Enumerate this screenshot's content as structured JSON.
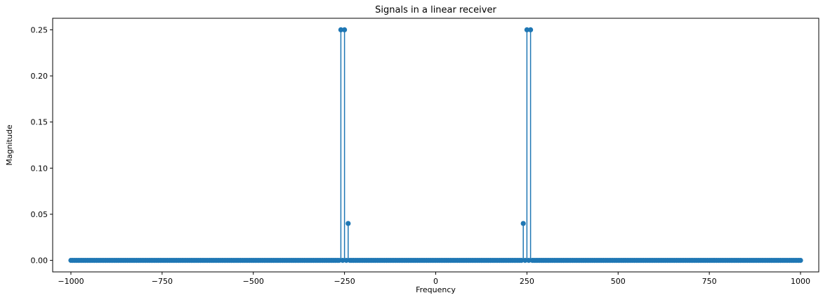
{
  "chart_data": {
    "type": "stem",
    "title": "Signals in a linear receiver",
    "xlabel": "Frequency",
    "ylabel": "Magnitude",
    "xlim": [
      -1050,
      1050
    ],
    "ylim": [
      -0.0125,
      0.2625
    ],
    "xticks": [
      -1000,
      -750,
      -500,
      -250,
      0,
      250,
      500,
      750,
      1000
    ],
    "xtick_labels": [
      "−1000",
      "−750",
      "−500",
      "−250",
      "0",
      "250",
      "500",
      "750",
      "1000"
    ],
    "yticks": [
      0.0,
      0.05,
      0.1,
      0.15,
      0.2,
      0.25
    ],
    "ytick_labels": [
      "0.00",
      "0.05",
      "0.10",
      "0.15",
      "0.20",
      "0.25"
    ],
    "grid": false,
    "color": "#1f77b4",
    "baseline": {
      "y": 0.0,
      "color": "#d62728"
    },
    "x_range": {
      "start": -1000,
      "stop": 1000,
      "step": 5
    },
    "nonzero_points": [
      {
        "x": -260,
        "y": 0.25
      },
      {
        "x": -250,
        "y": 0.25
      },
      {
        "x": -240,
        "y": 0.04
      },
      {
        "x": 240,
        "y": 0.04
      },
      {
        "x": 250,
        "y": 0.25
      },
      {
        "x": 260,
        "y": 0.25
      }
    ],
    "default_y": 0.0
  }
}
